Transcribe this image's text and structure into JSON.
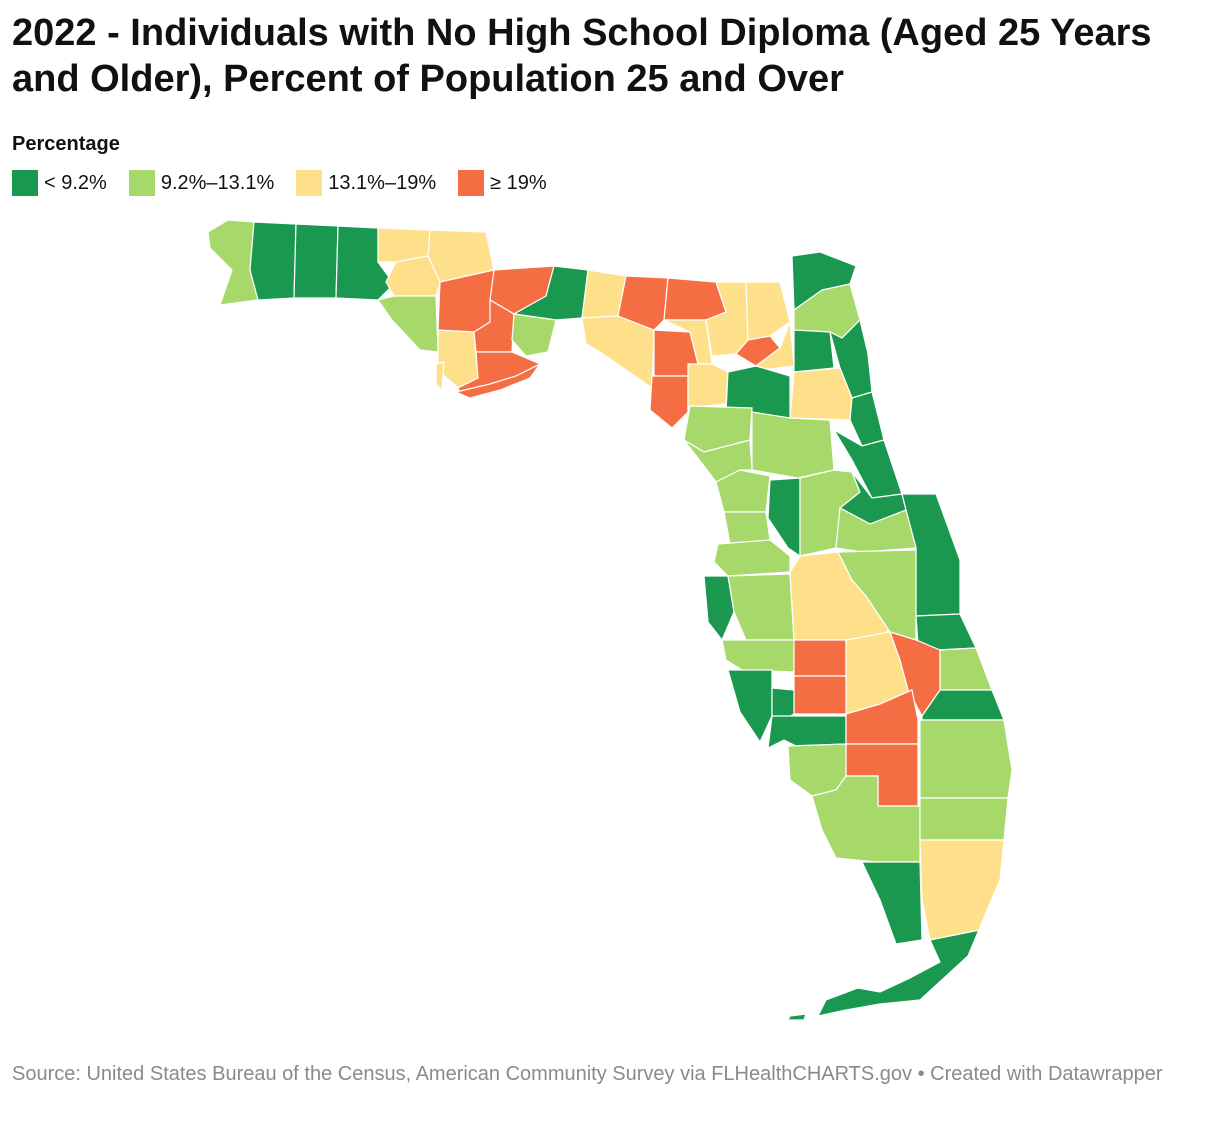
{
  "title": "2022 - Individuals with No High School Diploma (Aged 25 Years and Older), Percent of Population 25 and Over",
  "legend": {
    "title": "Percentage",
    "items": [
      {
        "label": "< 9.2%",
        "color": "#1a9850"
      },
      {
        "label": "9.2%–13.1%",
        "color": "#a6d96a"
      },
      {
        "label": "13.1%–19%",
        "color": "#fee08b"
      },
      {
        "label": "≥ 19%",
        "color": "#f46d43"
      }
    ]
  },
  "source": "Source: United States Bureau of the Census, American Community Survey via FLHealthCHARTS.gov • Created with Datawrapper"
}
